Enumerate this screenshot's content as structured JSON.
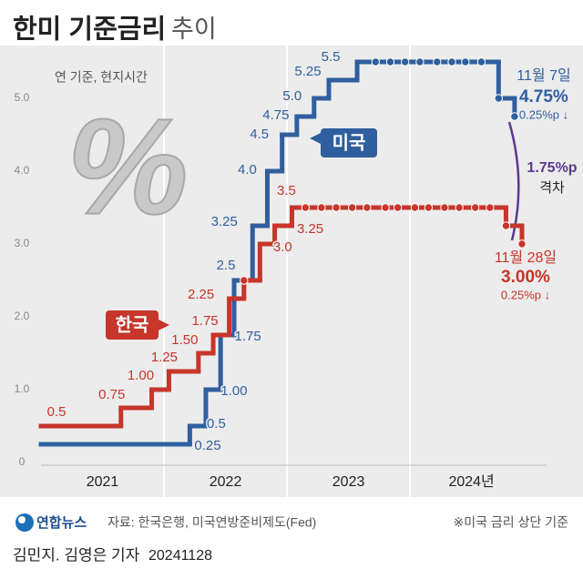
{
  "chart_data": {
    "type": "step",
    "title": "한미 기준금리",
    "subtitle": "추이",
    "note": "연 기준, 현지시간",
    "decoration": "%",
    "xlim": [
      2021,
      2025.11
    ],
    "xticks": [
      {
        "value": 2021.5,
        "label": "2021"
      },
      {
        "value": 2022.5,
        "label": "2022"
      },
      {
        "value": 2023.5,
        "label": "2023"
      },
      {
        "value": 2024.5,
        "label": "2024년"
      }
    ],
    "ylim": [
      0,
      5.725
    ],
    "yticks": [
      0,
      {
        "value": 1,
        "label": "1.0"
      },
      {
        "value": 2,
        "label": "2.0"
      },
      {
        "value": 3,
        "label": "3.0"
      },
      {
        "value": 4,
        "label": "4.0"
      },
      {
        "value": 5,
        "label": "5.0"
      }
    ],
    "grid": false,
    "series": [
      {
        "name": "미국",
        "color": "#2f5f9e",
        "x": [
          2021.0,
          2022.21,
          2022.34,
          2022.46,
          2022.57,
          2022.72,
          2022.84,
          2022.96,
          2023.08,
          2023.22,
          2023.34,
          2023.57,
          2023.72,
          2023.84,
          2023.96,
          2024.08,
          2024.22,
          2024.34,
          2024.45,
          2024.58,
          2024.72,
          2024.85
        ],
        "values": [
          0.25,
          0.5,
          1,
          1.75,
          2.5,
          3.25,
          4,
          4.5,
          4.75,
          5,
          5.25,
          5.5,
          5.5,
          5.5,
          5.5,
          5.5,
          5.5,
          5.5,
          5.5,
          5.5,
          5,
          4.75
        ],
        "value_labels": [
          "0.25",
          "0.5",
          "1.00",
          "1.75",
          "2.5",
          "3.25",
          "4.0",
          "4.5",
          "4.75",
          "5.0",
          "5.25",
          "5.5",
          null,
          null,
          null,
          null,
          null,
          null,
          null,
          null,
          null,
          "4.75%"
        ]
      },
      {
        "name": "한국",
        "color": "#c7352b",
        "x": [
          2021.0,
          2021.65,
          2021.9,
          2022.04,
          2022.28,
          2022.4,
          2022.53,
          2022.65,
          2022.78,
          2022.9,
          2023.04,
          2023.15,
          2023.28,
          2023.4,
          2023.53,
          2023.65,
          2023.8,
          2023.9,
          2024.04,
          2024.15,
          2024.28,
          2024.4,
          2024.53,
          2024.65,
          2024.78,
          2024.91
        ],
        "values": [
          0.5,
          0.75,
          1,
          1.25,
          1.5,
          1.75,
          2.25,
          2.5,
          3,
          3.25,
          3.5,
          3.5,
          3.5,
          3.5,
          3.5,
          3.5,
          3.5,
          3.5,
          3.5,
          3.5,
          3.5,
          3.5,
          3.5,
          3.5,
          3.25,
          3
        ],
        "value_labels": [
          "0.5",
          "0.75",
          "1.00",
          "1.25",
          "1.50",
          "1.75",
          "2.25",
          null,
          "3.0",
          "3.25",
          "3.5",
          null,
          null,
          null,
          null,
          null,
          null,
          null,
          null,
          null,
          null,
          null,
          null,
          null,
          null,
          "3.00%"
        ]
      }
    ],
    "annotations": [
      {
        "text": "11월 7일"
      },
      {
        "text": "0.25%p ↓"
      },
      {
        "text": "11월 28일"
      },
      {
        "text": "0.25%p ↓"
      },
      {
        "text": "1.75%p"
      },
      {
        "text": "격차"
      }
    ],
    "source": "자료: 한국은행, 미국연방준비제도(Fed)",
    "footnote": "※미국 금리 상단 기준",
    "logo": "연합뉴스",
    "byline": "김민지. 김영은 기자",
    "date_stamp": "20241128"
  }
}
